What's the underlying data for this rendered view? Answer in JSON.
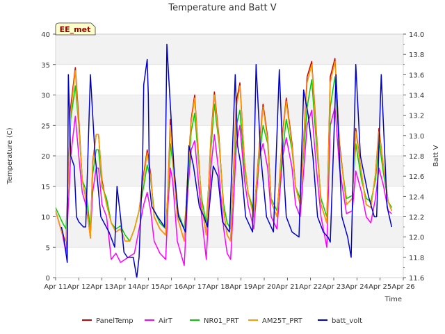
{
  "chart_data": {
    "type": "line",
    "title": "Temperature and Batt V",
    "xlabel": "Time",
    "ylabel": "Temperature (C)",
    "y2label": "Batt V",
    "station_label": "EE_met",
    "xlim": [
      11,
      26
    ],
    "ylim": [
      0,
      40
    ],
    "y2lim": [
      11.6,
      14.0
    ],
    "x_ticks": [
      11,
      12,
      13,
      14,
      15,
      16,
      17,
      18,
      19,
      20,
      21,
      22,
      23,
      24,
      25,
      26
    ],
    "x_tick_labels": [
      "Apr 11",
      "Apr 12",
      "Apr 13",
      "Apr 14",
      "Apr 15",
      "Apr 16",
      "Apr 17",
      "Apr 18",
      "Apr 19",
      "Apr 20",
      "Apr 21",
      "Apr 22",
      "Apr 23",
      "Apr 24",
      "Apr 25",
      "Apr 26"
    ],
    "y_ticks": [
      0,
      5,
      10,
      15,
      20,
      25,
      30,
      35,
      40
    ],
    "y2_ticks": [
      11.6,
      11.8,
      12.0,
      12.2,
      12.4,
      12.6,
      12.8,
      13.0,
      13.2,
      13.4,
      13.6,
      13.8,
      14.0
    ],
    "grid": true,
    "legend_position": "bottom",
    "series": [
      {
        "name": "PanelTemp",
        "color": "#cc0000",
        "axis": "left",
        "x": [
          11.0,
          11.3,
          11.45,
          11.65,
          11.85,
          12.0,
          12.15,
          12.3,
          12.5,
          12.6,
          12.75,
          12.85,
          13.0,
          13.2,
          13.4,
          13.6,
          13.8,
          14.0,
          14.2,
          14.4,
          14.6,
          14.8,
          14.95,
          15.1,
          15.25,
          15.5,
          15.75,
          15.85,
          15.95,
          16.05,
          16.25,
          16.55,
          16.7,
          16.85,
          17.0,
          17.3,
          17.5,
          17.7,
          17.85,
          18.05,
          18.25,
          18.4,
          18.55,
          18.8,
          18.95,
          19.15,
          19.3,
          19.55,
          19.8,
          19.95,
          20.15,
          20.3,
          20.55,
          20.8,
          20.95,
          21.2,
          21.35,
          21.55,
          21.85,
          22.05,
          22.25,
          22.45,
          22.7,
          22.85,
          23.05,
          23.25,
          23.55,
          23.8,
          23.95,
          24.2,
          24.4,
          24.6,
          24.8,
          24.95,
          25.15,
          25.35,
          25.5
        ],
        "y": [
          11,
          7,
          6,
          28,
          34.5,
          26,
          16,
          13,
          6.5,
          19,
          23.5,
          23.5,
          16,
          12,
          9,
          7.5,
          8,
          6,
          6,
          8,
          11,
          17,
          21,
          17,
          10,
          8,
          7,
          15,
          26,
          20,
          10,
          6,
          17,
          26,
          30,
          12,
          7,
          23,
          30.5,
          23,
          11,
          7,
          6,
          29,
          32,
          19,
          14,
          10,
          22,
          28.5,
          23,
          12.5,
          10,
          24,
          29.5,
          22,
          15,
          12,
          33,
          35.5,
          24,
          12,
          9,
          33,
          36,
          22,
          12,
          13,
          24.5,
          17,
          12,
          11.5,
          17,
          24.5,
          18,
          12.5,
          11
        ]
      },
      {
        "name": "AirT",
        "color": "#ff00ff",
        "axis": "left",
        "x": [
          11.0,
          11.3,
          11.45,
          11.65,
          11.85,
          12.0,
          12.15,
          12.3,
          12.5,
          12.6,
          12.75,
          12.85,
          13.0,
          13.2,
          13.4,
          13.6,
          13.8,
          14.0,
          14.2,
          14.4,
          14.6,
          14.8,
          14.95,
          15.1,
          15.25,
          15.5,
          15.75,
          15.85,
          15.95,
          16.05,
          16.25,
          16.55,
          16.7,
          16.85,
          17.0,
          17.3,
          17.5,
          17.7,
          17.85,
          18.05,
          18.25,
          18.4,
          18.55,
          18.8,
          18.95,
          19.15,
          19.3,
          19.55,
          19.8,
          19.95,
          20.15,
          20.3,
          20.55,
          20.8,
          20.95,
          21.2,
          21.35,
          21.55,
          21.85,
          22.05,
          22.25,
          22.45,
          22.7,
          22.85,
          23.05,
          23.25,
          23.55,
          23.8,
          23.95,
          24.2,
          24.4,
          24.6,
          24.8,
          24.95,
          25.15,
          25.35,
          25.5
        ],
        "y": [
          11,
          7,
          4,
          20,
          26.5,
          20,
          14,
          12,
          7,
          14,
          18,
          18,
          12,
          10,
          3,
          4,
          2.5,
          3,
          3.5,
          4,
          8,
          12,
          14,
          11,
          6,
          4,
          3,
          12,
          18,
          16,
          6,
          2,
          14,
          21,
          22.5,
          10,
          3,
          18,
          23.5,
          17,
          8,
          4,
          3,
          22,
          25,
          16,
          12,
          8,
          20,
          22,
          18,
          10,
          8,
          20,
          23,
          18,
          12,
          10,
          25,
          27.5,
          18,
          10,
          5,
          25,
          28,
          18,
          10.5,
          11,
          17.5,
          14,
          10,
          9,
          13,
          18,
          15,
          11,
          10.5
        ]
      },
      {
        "name": "NR01_PRT",
        "color": "#00cc00",
        "axis": "left",
        "x": [
          11.0,
          11.3,
          11.45,
          11.65,
          11.85,
          12.0,
          12.15,
          12.3,
          12.5,
          12.6,
          12.75,
          12.85,
          13.0,
          13.2,
          13.4,
          13.6,
          13.8,
          14.0,
          14.2,
          14.4,
          14.6,
          14.8,
          14.95,
          15.1,
          15.25,
          15.5,
          15.75,
          15.85,
          15.95,
          16.05,
          16.25,
          16.55,
          16.7,
          16.85,
          17.0,
          17.3,
          17.5,
          17.7,
          17.85,
          18.05,
          18.25,
          18.4,
          18.55,
          18.8,
          18.95,
          19.15,
          19.3,
          19.55,
          19.8,
          19.95,
          20.15,
          20.3,
          20.55,
          20.8,
          20.95,
          21.2,
          21.35,
          21.55,
          21.85,
          22.05,
          22.25,
          22.45,
          22.7,
          22.85,
          23.05,
          23.25,
          23.55,
          23.8,
          23.95,
          24.2,
          24.4,
          24.6,
          24.8,
          24.95,
          25.15,
          25.35,
          25.5
        ],
        "y": [
          11.5,
          9,
          8,
          26,
          31.5,
          25,
          16,
          14.5,
          8,
          17,
          21,
          21,
          15,
          13,
          9,
          8,
          8.5,
          7,
          6,
          8,
          11,
          15,
          18.5,
          16,
          11,
          9,
          8,
          14,
          22,
          19,
          11,
          8,
          15,
          24,
          27,
          13,
          9,
          21,
          28.5,
          22,
          12,
          9,
          8,
          25,
          27.5,
          18,
          14,
          11,
          20,
          25,
          22,
          13,
          11,
          21,
          26,
          21,
          15,
          13,
          28,
          32.5,
          22,
          13,
          10,
          28,
          33,
          21,
          13,
          13.5,
          22,
          16,
          13,
          12.5,
          16,
          22.5,
          17,
          12.5,
          11.5
        ]
      },
      {
        "name": "AM25T_PRT",
        "color": "#ff9900",
        "axis": "left",
        "x": [
          11.0,
          11.3,
          11.45,
          11.65,
          11.85,
          12.0,
          12.15,
          12.3,
          12.5,
          12.6,
          12.75,
          12.85,
          13.0,
          13.2,
          13.4,
          13.6,
          13.8,
          14.0,
          14.2,
          14.4,
          14.6,
          14.8,
          14.95,
          15.1,
          15.25,
          15.5,
          15.75,
          15.85,
          15.95,
          16.05,
          16.25,
          16.55,
          16.7,
          16.85,
          17.0,
          17.3,
          17.5,
          17.7,
          17.85,
          18.05,
          18.25,
          18.4,
          18.55,
          18.8,
          18.95,
          19.15,
          19.3,
          19.55,
          19.8,
          19.95,
          20.15,
          20.3,
          20.55,
          20.8,
          20.95,
          21.2,
          21.35,
          21.55,
          21.85,
          22.05,
          22.25,
          22.45,
          22.7,
          22.85,
          23.05,
          23.25,
          23.55,
          23.8,
          23.95,
          24.2,
          24.4,
          24.6,
          24.8,
          24.95,
          25.15,
          25.35,
          25.5
        ],
        "y": [
          11,
          7,
          6,
          27,
          34,
          25,
          16,
          13,
          6.5,
          18.5,
          23.5,
          23.5,
          15.5,
          12,
          9,
          7.5,
          8,
          6,
          6,
          8,
          11,
          16.5,
          20.5,
          16.5,
          10,
          8,
          7,
          14.5,
          25,
          19.5,
          10,
          6,
          16.5,
          25.5,
          29.5,
          12,
          7,
          22.5,
          30,
          22.5,
          11,
          7,
          6,
          28,
          31.5,
          19,
          14,
          10,
          21.5,
          28,
          22.5,
          12.5,
          10,
          23.5,
          29,
          21.5,
          15,
          12,
          32,
          35,
          23.5,
          12,
          9,
          32,
          35.5,
          21.5,
          12,
          13,
          24,
          17,
          12,
          11.5,
          17,
          24,
          18,
          12.5,
          11
        ]
      },
      {
        "name": "batt_volt",
        "color": "#0000cc",
        "axis": "right",
        "x": [
          11.25,
          11.35,
          11.5,
          11.55,
          11.65,
          11.8,
          11.9,
          12.0,
          12.2,
          12.3,
          12.5,
          12.7,
          12.75,
          12.95,
          13.3,
          13.55,
          13.65,
          13.8,
          13.95,
          14.1,
          14.35,
          14.5,
          14.6,
          14.75,
          14.8,
          14.95,
          15.0,
          15.05,
          15.15,
          15.4,
          15.7,
          15.8,
          15.9,
          16.1,
          16.3,
          16.6,
          16.75,
          16.95,
          17.2,
          17.4,
          17.55,
          17.8,
          18.0,
          18.2,
          18.5,
          18.75,
          18.85,
          19.0,
          19.2,
          19.5,
          19.65,
          19.85,
          20.1,
          20.4,
          20.65,
          20.8,
          20.95,
          21.2,
          21.5,
          21.7,
          21.9,
          22.1,
          22.3,
          22.55,
          22.75,
          22.85,
          23.1,
          23.35,
          23.6,
          23.75,
          23.95,
          24.15,
          24.5,
          24.75,
          24.85,
          25.05,
          25.3,
          25.5
        ],
        "y": [
          12.1,
          12.0,
          11.75,
          13.6,
          12.8,
          12.7,
          12.2,
          12.15,
          12.1,
          12.1,
          13.6,
          12.8,
          12.7,
          12.2,
          12.05,
          11.9,
          12.5,
          12.2,
          11.85,
          11.8,
          11.8,
          11.6,
          11.8,
          12.7,
          13.5,
          13.75,
          13.4,
          12.5,
          12.3,
          12.2,
          12.1,
          13.9,
          13.5,
          12.7,
          12.2,
          12.05,
          12.9,
          12.7,
          12.3,
          12.2,
          12.1,
          12.7,
          12.6,
          12.15,
          12.05,
          13.6,
          12.9,
          12.7,
          12.2,
          12.05,
          13.7,
          12.8,
          12.2,
          12.05,
          13.65,
          12.8,
          12.2,
          12.05,
          12.0,
          13.45,
          13.2,
          12.8,
          12.2,
          12.05,
          12.0,
          11.95,
          13.6,
          12.2,
          12.0,
          11.8,
          13.7,
          12.8,
          12.4,
          12.2,
          12.2,
          13.6,
          12.3,
          12.1
        ]
      }
    ]
  }
}
